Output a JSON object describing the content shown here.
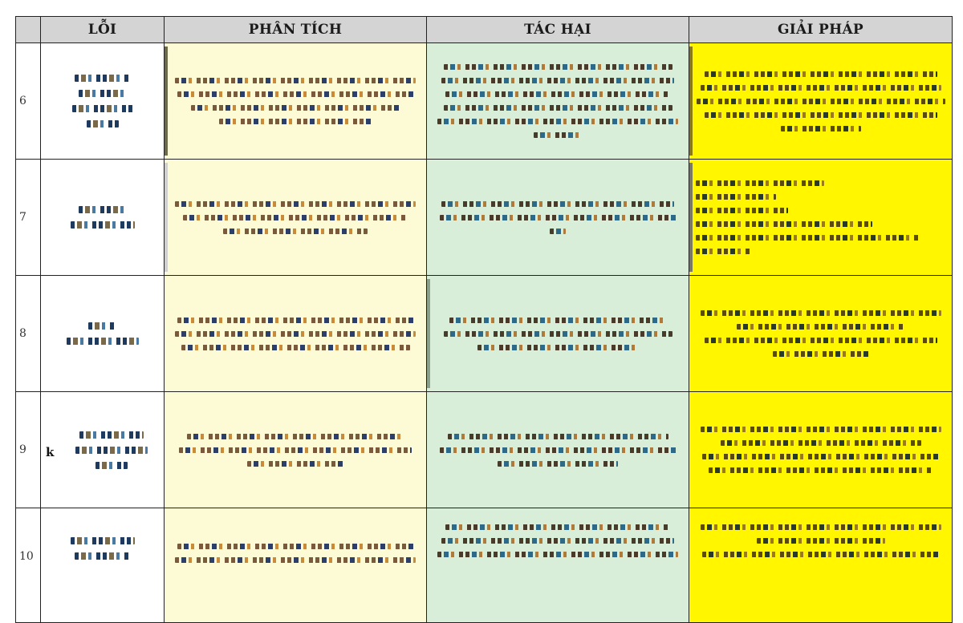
{
  "headers": {
    "loi": "LỖI",
    "phan_tich": "PHÂN TÍCH",
    "tac_hai": "TÁC HẠI",
    "giai_phap": "GIẢI PHÁP"
  },
  "rows": [
    {
      "num": "6",
      "err_text": ""
    },
    {
      "num": "7",
      "err_text": ""
    },
    {
      "num": "8",
      "err_text": ""
    },
    {
      "num": "9",
      "err_text": "k"
    },
    {
      "num": "10",
      "err_text": ""
    }
  ],
  "colors": {
    "header_bg": "#d4d4d4",
    "analysis_bg": "#fdfbd6",
    "harm_bg": "#d9eed8",
    "solution_bg": "#fff600"
  }
}
